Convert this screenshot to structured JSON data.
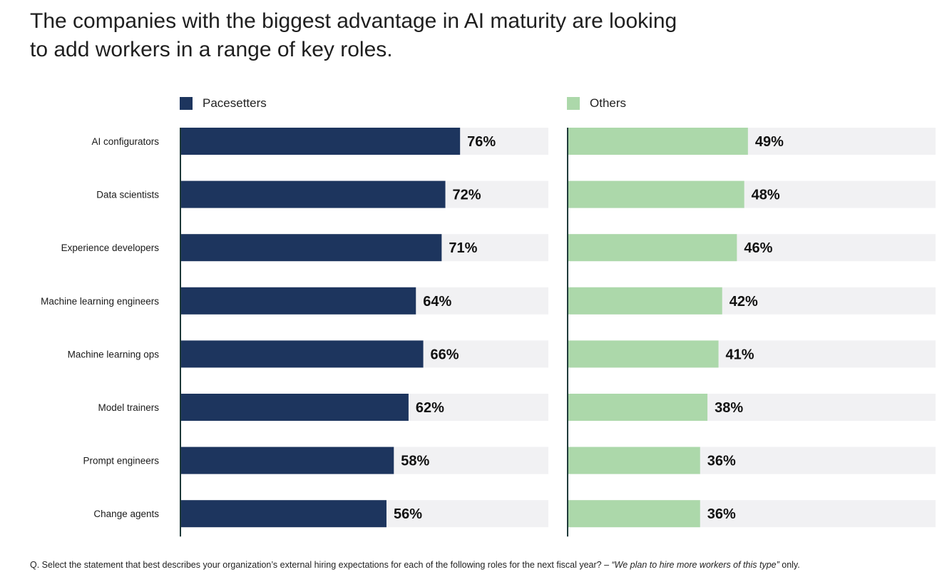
{
  "title": {
    "line1": "The companies with the biggest advantage in AI maturity are looking",
    "line2": "to add workers in a range of key roles."
  },
  "legend": [
    {
      "label": "Pacesetters",
      "color": "#1d355e"
    },
    {
      "label": "Others",
      "color": "#acd8aa"
    }
  ],
  "footnote": {
    "prefix": "Q. Select the statement that best describes your organization’s external hiring expectations for each of the following roles for the next fiscal year? – ",
    "quote": "“We plan to hire more workers of this type”",
    "suffix": " only."
  },
  "chart_data": {
    "type": "bar",
    "orientation": "horizontal",
    "categories": [
      "AI configurators",
      "Data scientists",
      "Experience developers",
      "Machine learning engineers",
      "Machine learning ops",
      "Model trainers",
      "Prompt engineers",
      "Change agents"
    ],
    "series": [
      {
        "name": "Pacesetters",
        "values": [
          76,
          72,
          71,
          64,
          66,
          62,
          58,
          56
        ],
        "color": "#1d355e"
      },
      {
        "name": "Others",
        "values": [
          49,
          48,
          46,
          42,
          41,
          38,
          36,
          36
        ],
        "color": "#acd8aa"
      }
    ],
    "value_suffix": "%",
    "xlim": [
      0,
      100
    ],
    "track_color": "#f1f1f3",
    "axis_color": "#1f3a3a"
  }
}
